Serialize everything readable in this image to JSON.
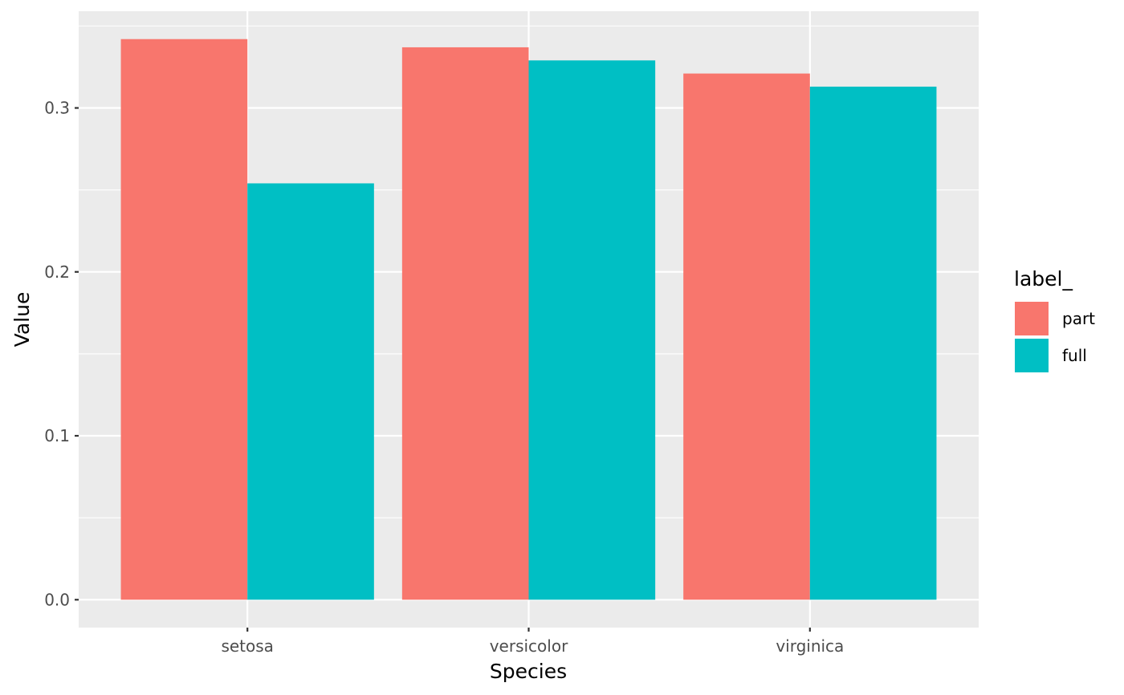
{
  "chart_data": {
    "type": "bar",
    "categories": [
      "setosa",
      "versicolor",
      "virginica"
    ],
    "series": [
      {
        "name": "part",
        "values": [
          0.342,
          0.337,
          0.321
        ],
        "color": "#F8766D"
      },
      {
        "name": "full",
        "values": [
          0.254,
          0.329,
          0.313
        ],
        "color": "#00BFC4"
      }
    ],
    "xlabel": "Species",
    "ylabel": "Value",
    "ylim": [
      -0.017,
      0.359
    ],
    "yticks": [
      0.0,
      0.1,
      0.2,
      0.3
    ],
    "ytick_labels": [
      "0.0",
      "0.1",
      "0.2",
      "0.3"
    ],
    "legend": {
      "title": "label_",
      "position": "right"
    },
    "grid": true,
    "colors": {
      "panel_background": "#EBEBEB",
      "grid_line": "#FFFFFF",
      "tick": "#333333",
      "tick_label": "#4D4D4D"
    }
  }
}
